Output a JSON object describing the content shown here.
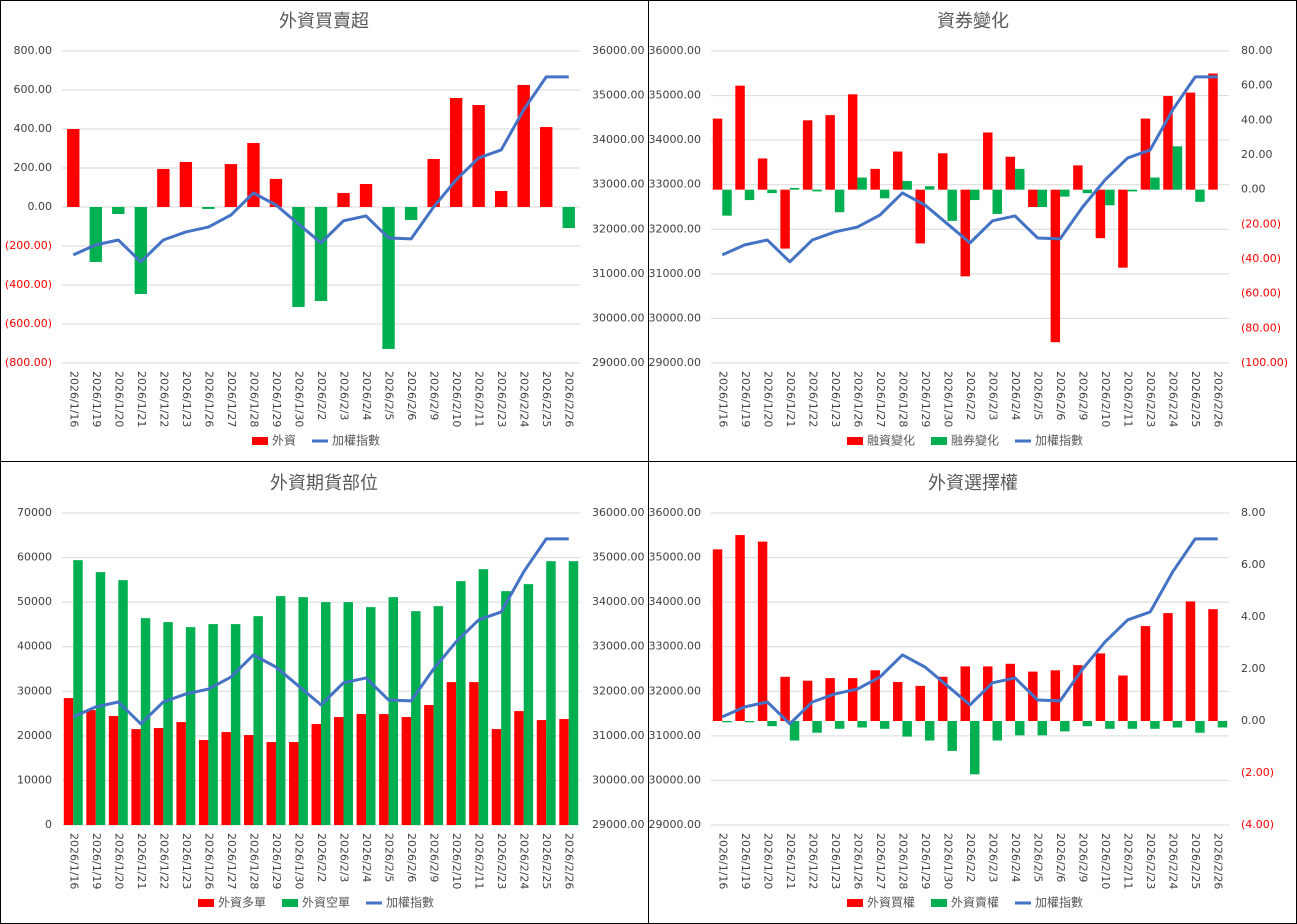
{
  "chart_data": [
    {
      "type": "bar",
      "title": "外資買賣超",
      "categories": [
        "2026/1/16",
        "2026/1/19",
        "2026/1/20",
        "2026/1/21",
        "2026/1/22",
        "2026/1/23",
        "2026/1/26",
        "2026/1/27",
        "2026/1/28",
        "2026/1/29",
        "2026/1/30",
        "2026/2/2",
        "2026/2/3",
        "2026/2/4",
        "2026/2/5",
        "2026/2/6",
        "2026/2/9",
        "2026/2/10",
        "2026/2/11",
        "2026/2/23",
        "2026/2/24",
        "2026/2/25",
        "2026/2/26"
      ],
      "negative_color": "#00b050",
      "series": [
        {
          "name": "外資",
          "color": "#ff0000",
          "values": [
            400,
            -282,
            -36,
            -446,
            195,
            231,
            -10,
            220,
            328,
            144,
            -513,
            -482,
            72,
            118,
            -728,
            -67,
            246,
            559,
            523,
            82,
            626,
            410,
            -108
          ]
        },
        {
          "name": "加權指數",
          "type": "line",
          "axis": "y2",
          "color": "#4472c4",
          "values": [
            31426,
            31650,
            31760,
            31270,
            31760,
            31940,
            32050,
            32320,
            32815,
            32545,
            32120,
            31695,
            32190,
            32300,
            31805,
            31785,
            32500,
            33110,
            33600,
            33780,
            34680,
            35420,
            35420
          ]
        }
      ],
      "ylim": [
        -800,
        800
      ],
      "yticks": [
        {
          "value": -800,
          "label": "(800.00)"
        },
        {
          "value": -600,
          "label": "(600.00)"
        },
        {
          "value": -400,
          "label": "(400.00)"
        },
        {
          "value": -200,
          "label": "(200.00)"
        },
        {
          "value": 0,
          "label": "0.00"
        },
        {
          "value": 200,
          "label": "200.00"
        },
        {
          "value": 400,
          "label": "400.00"
        },
        {
          "value": 600,
          "label": "600.00"
        },
        {
          "value": 800,
          "label": "800.00"
        }
      ],
      "y2lim": [
        29000,
        36000
      ],
      "y2ticks": [
        {
          "value": 29000,
          "label": "29000.00"
        },
        {
          "value": 30000,
          "label": "30000.00"
        },
        {
          "value": 31000,
          "label": "31000.00"
        },
        {
          "value": 32000,
          "label": "32000.00"
        },
        {
          "value": 33000,
          "label": "33000.00"
        },
        {
          "value": 34000,
          "label": "34000.00"
        },
        {
          "value": 35000,
          "label": "35000.00"
        },
        {
          "value": 36000,
          "label": "36000.00"
        }
      ],
      "grid": true
    },
    {
      "type": "bar",
      "title": "資券變化",
      "categories": [
        "2026/1/16",
        "2026/1/19",
        "2026/1/20",
        "2026/1/21",
        "2026/1/22",
        "2026/1/23",
        "2026/1/26",
        "2026/1/27",
        "2026/1/28",
        "2026/1/29",
        "2026/1/30",
        "2026/2/2",
        "2026/2/3",
        "2026/2/4",
        "2026/2/5",
        "2026/2/6",
        "2026/2/9",
        "2026/2/10",
        "2026/2/11",
        "2026/2/23",
        "2026/2/24",
        "2026/2/25",
        "2026/2/26"
      ],
      "series": [
        {
          "name": "融資變化",
          "axis": "y2",
          "color": "#ff0000",
          "values": [
            41,
            60,
            18,
            -34,
            40,
            43,
            55,
            12,
            22,
            -31,
            21,
            -50,
            33,
            19,
            -10,
            -88,
            14,
            -28,
            -45,
            41,
            54,
            56,
            67
          ]
        },
        {
          "name": "融券變化",
          "axis": "y2",
          "color": "#00b050",
          "values": [
            -15,
            -6,
            -2,
            1,
            -1,
            -13,
            7,
            -5,
            5,
            2,
            -18,
            -6,
            -14,
            12,
            -10,
            -4,
            -2,
            -9,
            -1,
            7,
            25,
            -7,
            0
          ]
        },
        {
          "name": "加權指數",
          "type": "line",
          "color": "#4472c4",
          "values": [
            31426,
            31650,
            31760,
            31270,
            31760,
            31940,
            32050,
            32320,
            32815,
            32545,
            32120,
            31695,
            32190,
            32300,
            31805,
            31785,
            32500,
            33110,
            33600,
            33780,
            34680,
            35420,
            35420
          ]
        }
      ],
      "ylim": [
        29000,
        36000
      ],
      "yticks": [
        {
          "value": 29000,
          "label": "29000.00"
        },
        {
          "value": 30000,
          "label": "30000.00"
        },
        {
          "value": 31000,
          "label": "31000.00"
        },
        {
          "value": 32000,
          "label": "32000.00"
        },
        {
          "value": 33000,
          "label": "33000.00"
        },
        {
          "value": 34000,
          "label": "34000.00"
        },
        {
          "value": 35000,
          "label": "35000.00"
        },
        {
          "value": 36000,
          "label": "36000.00"
        }
      ],
      "y2lim": [
        -100,
        80
      ],
      "y2ticks": [
        {
          "value": -100,
          "label": "(100.00)"
        },
        {
          "value": -80,
          "label": "(80.00)"
        },
        {
          "value": -60,
          "label": "(60.00)"
        },
        {
          "value": -40,
          "label": "(40.00)"
        },
        {
          "value": -20,
          "label": "(20.00)"
        },
        {
          "value": 0,
          "label": "0.00"
        },
        {
          "value": 20,
          "label": "20.00"
        },
        {
          "value": 40,
          "label": "40.00"
        },
        {
          "value": 60,
          "label": "60.00"
        },
        {
          "value": 80,
          "label": "80.00"
        }
      ],
      "grid": true
    },
    {
      "type": "bar",
      "title": "外資期貨部位",
      "categories": [
        "2026/1/16",
        "2026/1/19",
        "2026/1/20",
        "2026/1/21",
        "2026/1/22",
        "2026/1/23",
        "2026/1/26",
        "2026/1/27",
        "2026/1/28",
        "2026/1/29",
        "2026/1/30",
        "2026/2/2",
        "2026/2/3",
        "2026/2/4",
        "2026/2/5",
        "2026/2/6",
        "2026/2/9",
        "2026/2/10",
        "2026/2/11",
        "2026/2/23",
        "2026/2/24",
        "2026/2/25",
        "2026/2/26"
      ],
      "series": [
        {
          "name": "外資多單",
          "color": "#ff0000",
          "values": [
            28480,
            25780,
            24440,
            21520,
            21750,
            23090,
            19060,
            20850,
            20180,
            18610,
            18610,
            22650,
            24220,
            24890,
            24890,
            24220,
            26910,
            32060,
            32060,
            21520,
            25560,
            23540,
            23770
          ]
        },
        {
          "name": "外資空單",
          "color": "#00b050",
          "values": [
            59420,
            56730,
            54930,
            46410,
            45520,
            44390,
            45070,
            45070,
            46860,
            51350,
            51120,
            50000,
            50000,
            48880,
            51120,
            47980,
            49100,
            54710,
            57400,
            52470,
            54040,
            59190,
            59190
          ]
        },
        {
          "name": "加權指數",
          "type": "line",
          "axis": "y2",
          "color": "#4472c4",
          "values": [
            31426,
            31650,
            31760,
            31270,
            31760,
            31940,
            32050,
            32320,
            32815,
            32545,
            32120,
            31695,
            32190,
            32300,
            31805,
            31785,
            32500,
            33110,
            33600,
            33780,
            34680,
            35420,
            35420
          ]
        }
      ],
      "ylim": [
        0,
        70000
      ],
      "yticks": [
        0,
        10000,
        20000,
        30000,
        40000,
        50000,
        60000,
        70000
      ],
      "y2lim": [
        29000,
        36000
      ],
      "y2ticks": [
        {
          "value": 29000,
          "label": "29000.00"
        },
        {
          "value": 30000,
          "label": "30000.00"
        },
        {
          "value": 31000,
          "label": "31000.00"
        },
        {
          "value": 32000,
          "label": "32000.00"
        },
        {
          "value": 33000,
          "label": "33000.00"
        },
        {
          "value": 34000,
          "label": "34000.00"
        },
        {
          "value": 35000,
          "label": "35000.00"
        },
        {
          "value": 36000,
          "label": "36000.00"
        }
      ],
      "grid": true
    },
    {
      "type": "bar",
      "title": "外資選擇權",
      "categories": [
        "2026/1/16",
        "2026/1/19",
        "2026/1/20",
        "2026/1/21",
        "2026/1/22",
        "2026/1/23",
        "2026/1/26",
        "2026/1/27",
        "2026/1/28",
        "2026/1/29",
        "2026/1/30",
        "2026/2/2",
        "2026/2/3",
        "2026/2/4",
        "2026/2/5",
        "2026/2/6",
        "2026/2/9",
        "2026/2/10",
        "2026/2/11",
        "2026/2/23",
        "2026/2/24",
        "2026/2/25",
        "2026/2/26"
      ],
      "series": [
        {
          "name": "外資買權",
          "axis": "y2",
          "color": "#ff0000",
          "values": [
            6.6,
            7.15,
            6.9,
            1.7,
            1.55,
            1.65,
            1.65,
            1.95,
            1.5,
            1.35,
            1.7,
            2.1,
            2.1,
            2.2,
            1.9,
            1.95,
            2.15,
            2.6,
            1.75,
            3.65,
            4.15,
            4.6,
            4.3
          ]
        },
        {
          "name": "外資賣權",
          "axis": "y2",
          "color": "#00b050",
          "values": [
            -0.05,
            -0.05,
            -0.2,
            -0.75,
            -0.45,
            -0.3,
            -0.25,
            -0.3,
            -0.6,
            -0.75,
            -1.15,
            -2.05,
            -0.75,
            -0.55,
            -0.55,
            -0.4,
            -0.2,
            -0.3,
            -0.3,
            -0.3,
            -0.25,
            -0.45,
            -0.25
          ]
        },
        {
          "name": "加權指數",
          "type": "line",
          "color": "#4472c4",
          "values": [
            31426,
            31650,
            31760,
            31270,
            31760,
            31940,
            32050,
            32320,
            32815,
            32545,
            32120,
            31695,
            32190,
            32300,
            31805,
            31785,
            32500,
            33110,
            33600,
            33780,
            34680,
            35420,
            35420
          ]
        }
      ],
      "ylim": [
        29000,
        36000
      ],
      "yticks": [
        {
          "value": 29000,
          "label": "29000.00"
        },
        {
          "value": 30000,
          "label": "30000.00"
        },
        {
          "value": 31000,
          "label": "31000.00"
        },
        {
          "value": 32000,
          "label": "32000.00"
        },
        {
          "value": 33000,
          "label": "33000.00"
        },
        {
          "value": 34000,
          "label": "34000.00"
        },
        {
          "value": 35000,
          "label": "35000.00"
        },
        {
          "value": 36000,
          "label": "36000.00"
        }
      ],
      "y2lim": [
        -4,
        8
      ],
      "y2ticks": [
        {
          "value": -4,
          "label": "(4.00)"
        },
        {
          "value": -2,
          "label": "(2.00)"
        },
        {
          "value": 0,
          "label": "0.00"
        },
        {
          "value": 2,
          "label": "2.00"
        },
        {
          "value": 4,
          "label": "4.00"
        },
        {
          "value": 6,
          "label": "6.00"
        },
        {
          "value": 8,
          "label": "8.00"
        }
      ],
      "grid": true
    }
  ]
}
